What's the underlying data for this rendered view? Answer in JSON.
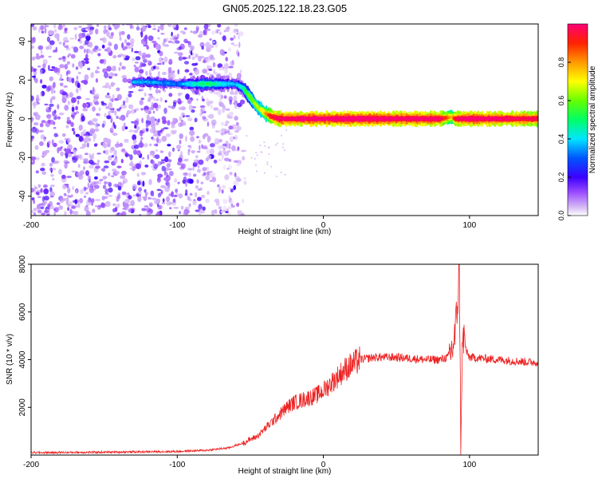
{
  "title": "GN05.2025.122.18.23.G05",
  "chart_data": [
    {
      "type": "heatmap",
      "xlabel": "Height of straight line (km)",
      "ylabel": "Frequency (Hz)",
      "xlim": [
        -200,
        147
      ],
      "ylim": [
        -50,
        49
      ],
      "x_ticks": [
        -200,
        -100,
        0,
        100
      ],
      "y_ticks": [
        -40,
        -20,
        0,
        20,
        40
      ],
      "colorbar": {
        "label": "Normalized spectral amplitude",
        "range": [
          0,
          1
        ],
        "ticks": [
          0.0,
          0.2,
          0.4,
          0.6,
          0.8
        ],
        "colors": [
          "#ffffff",
          "#c79bf2",
          "#7a00ff",
          "#0000ff",
          "#00ffff",
          "#00ff00",
          "#ffff00",
          "#ff8000",
          "#ff0000",
          "#ff0080"
        ]
      },
      "noise_region_x": [
        -200,
        -55
      ],
      "ridge": {
        "x": [
          -130,
          -120,
          -100,
          -80,
          -60,
          -55,
          -50,
          -45,
          -40,
          -35,
          -30,
          -20,
          0,
          20,
          50,
          80,
          88,
          90,
          100,
          120,
          147
        ],
        "y": [
          19,
          19,
          18,
          18,
          18,
          16,
          11,
          6,
          3,
          1,
          0,
          0,
          0,
          0,
          0,
          0,
          1,
          0,
          0,
          0,
          0
        ],
        "amplitude": [
          0.3,
          0.3,
          0.25,
          0.45,
          0.3,
          0.4,
          0.55,
          0.6,
          0.7,
          0.9,
          0.95,
          0.95,
          0.98,
          0.98,
          0.96,
          0.95,
          0.7,
          0.9,
          0.97,
          0.95,
          0.9
        ]
      }
    },
    {
      "type": "line",
      "xlabel": "Height of straight line (km)",
      "ylabel": "SNR (10 * v/v)",
      "xlim": [
        -200,
        147
      ],
      "ylim": [
        0,
        8000
      ],
      "x_ticks": [
        -200,
        -100,
        0,
        100
      ],
      "y_ticks": [
        2000,
        4000,
        6000,
        8000
      ],
      "color": "#ee2222",
      "series": [
        {
          "x": [
            -200,
            -150,
            -100,
            -80,
            -65,
            -55,
            -45,
            -40,
            -35,
            -30,
            -25,
            -20,
            -15,
            -10,
            -5,
            0,
            5,
            10,
            15,
            20,
            25,
            30,
            35,
            40,
            50,
            60,
            70,
            80,
            85,
            88,
            90,
            92,
            93,
            94,
            95,
            96,
            98,
            100,
            110,
            120,
            130,
            140,
            147
          ],
          "y": [
            100,
            120,
            150,
            200,
            300,
            500,
            800,
            1100,
            1400,
            1700,
            2000,
            2200,
            2300,
            2400,
            2500,
            2700,
            3000,
            3300,
            3600,
            3800,
            4000,
            4050,
            4100,
            4100,
            4100,
            4050,
            4000,
            4000,
            4100,
            4400,
            5000,
            6500,
            8000,
            700,
            4200,
            5000,
            4300,
            4100,
            4050,
            4000,
            3950,
            3900,
            3900
          ]
        }
      ]
    }
  ]
}
